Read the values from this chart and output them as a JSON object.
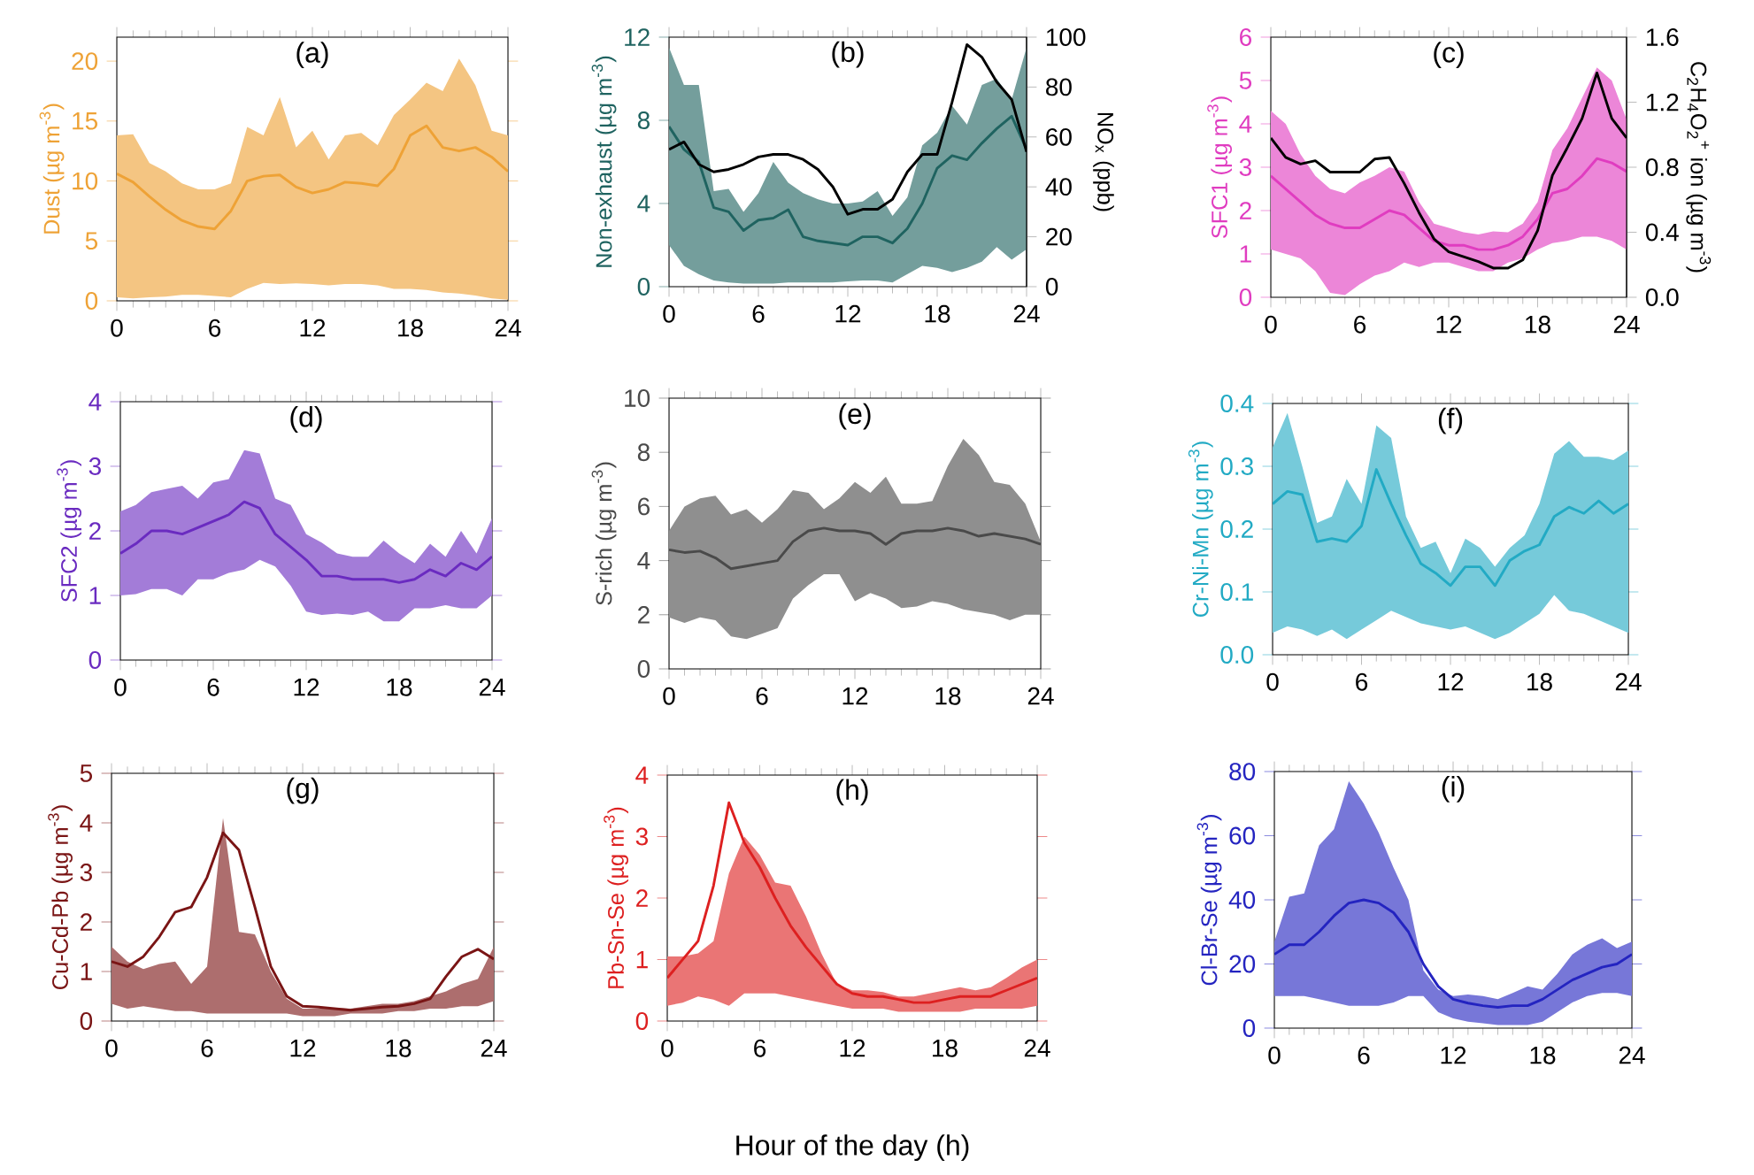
{
  "chart_data": [
    {
      "type": "line",
      "title": "(a)",
      "ylabel": "Dust (µg m$^{-3}$)",
      "x": [
        0,
        1,
        2,
        3,
        4,
        5,
        6,
        7,
        8,
        9,
        10,
        11,
        12,
        13,
        14,
        15,
        16,
        17,
        18,
        19,
        20,
        21,
        22,
        23,
        24
      ],
      "xlim": [
        0,
        24
      ],
      "xticks": [
        0,
        6,
        12,
        18,
        24
      ],
      "ylim": [
        0,
        22
      ],
      "yticks": [
        0,
        5,
        10,
        15,
        20
      ],
      "series": [
        {
          "color": "#eea236",
          "values": [
            10.6,
            9.9,
            8.7,
            7.6,
            6.7,
            6.2,
            6.0,
            7.5,
            10.0,
            10.4,
            10.5,
            9.5,
            9.0,
            9.3,
            9.9,
            9.8,
            9.6,
            11.0,
            13.8,
            14.6,
            12.8,
            12.5,
            12.8,
            12.0,
            10.8
          ],
          "lower": [
            0.3,
            0.2,
            0.3,
            0.35,
            0.5,
            0.5,
            0.4,
            0.3,
            1.0,
            1.5,
            1.4,
            1.45,
            1.4,
            1.3,
            1.4,
            1.4,
            1.3,
            1.0,
            1.0,
            0.9,
            0.7,
            0.6,
            0.45,
            0.2,
            0.1
          ],
          "upper": [
            13.8,
            13.9,
            11.5,
            10.8,
            9.8,
            9.3,
            9.3,
            9.8,
            14.5,
            13.8,
            17.0,
            12.8,
            14.2,
            11.8,
            13.8,
            14.0,
            13.0,
            15.5,
            16.8,
            18.2,
            17.5,
            20.2,
            18.0,
            14.2,
            13.8
          ]
        }
      ]
    },
    {
      "type": "line",
      "title": "(b)",
      "ylabel": "Non-exhaust (µg m$^{-3}$)",
      "y2label": "NO$_{x}$ (ppb)",
      "x": [
        0,
        1,
        2,
        3,
        4,
        5,
        6,
        7,
        8,
        9,
        10,
        11,
        12,
        13,
        14,
        15,
        16,
        17,
        18,
        19,
        20,
        21,
        22,
        23,
        24
      ],
      "xlim": [
        0,
        24
      ],
      "xticks": [
        0,
        6,
        12,
        18,
        24
      ],
      "ylim": [
        0,
        12
      ],
      "yticks": [
        0,
        4,
        8,
        12
      ],
      "y2lim": [
        0,
        100
      ],
      "y2ticks": [
        0,
        20,
        40,
        60,
        80,
        100
      ],
      "series": [
        {
          "color": "#1f6360",
          "values": [
            7.7,
            6.6,
            6.0,
            3.8,
            3.6,
            2.7,
            3.2,
            3.3,
            3.7,
            2.4,
            2.2,
            2.1,
            2.0,
            2.4,
            2.4,
            2.1,
            2.8,
            4.0,
            5.7,
            6.3,
            6.1,
            6.9,
            7.6,
            8.2,
            6.6
          ],
          "lower": [
            2.0,
            1.0,
            0.6,
            0.3,
            0.2,
            0.15,
            0.15,
            0.15,
            0.2,
            0.2,
            0.2,
            0.2,
            0.25,
            0.3,
            0.3,
            0.2,
            0.6,
            1.0,
            0.9,
            0.7,
            0.9,
            1.2,
            1.9,
            1.3,
            1.8
          ],
          "upper": [
            11.5,
            9.7,
            9.7,
            4.6,
            4.7,
            3.6,
            4.5,
            6.0,
            5.0,
            4.5,
            4.2,
            4.0,
            4.0,
            4.1,
            4.6,
            3.4,
            4.3,
            6.8,
            7.4,
            8.7,
            7.8,
            9.7,
            10.0,
            9.0,
            11.5
          ]
        },
        {
          "color": "#000000",
          "axis": "y2",
          "values": [
            55,
            58,
            49,
            46,
            47,
            49,
            52,
            53,
            53,
            51,
            47,
            40,
            29,
            31,
            31,
            35,
            46,
            53,
            53,
            74,
            97,
            92,
            82,
            75,
            54
          ]
        }
      ]
    },
    {
      "type": "line",
      "title": "(c)",
      "ylabel": "SFC1 (µg m$^{-3}$)",
      "y2label": "C$_{2}$H$_{4}$O$_{2}$$^{+}$ ion (µg m$^{-3}$)",
      "x": [
        0,
        1,
        2,
        3,
        4,
        5,
        6,
        7,
        8,
        9,
        10,
        11,
        12,
        13,
        14,
        15,
        16,
        17,
        18,
        19,
        20,
        21,
        22,
        23,
        24
      ],
      "xlim": [
        0,
        24
      ],
      "xticks": [
        0,
        6,
        12,
        18,
        24
      ],
      "ylim": [
        0,
        6
      ],
      "yticks": [
        0,
        1,
        2,
        3,
        4,
        5,
        6
      ],
      "y2lim": [
        0,
        1.6
      ],
      "y2ticks": [
        {
          "value": 0,
          "label": "0.0"
        },
        0.4,
        0.8,
        1.2,
        1.6
      ],
      "series": [
        {
          "color": "#e03cc0",
          "values": [
            2.8,
            2.5,
            2.2,
            1.9,
            1.7,
            1.6,
            1.6,
            1.8,
            2.0,
            1.9,
            1.6,
            1.3,
            1.2,
            1.2,
            1.1,
            1.1,
            1.2,
            1.4,
            1.8,
            2.4,
            2.5,
            2.8,
            3.2,
            3.1,
            2.9
          ],
          "lower": [
            1.1,
            1.0,
            0.9,
            0.6,
            0.1,
            0.05,
            0.3,
            0.5,
            0.6,
            0.8,
            0.7,
            0.8,
            0.8,
            0.7,
            0.6,
            0.6,
            0.8,
            0.9,
            1.1,
            1.25,
            1.3,
            1.4,
            1.4,
            1.3,
            1.1
          ],
          "upper": [
            4.3,
            4.0,
            3.3,
            2.8,
            2.5,
            2.4,
            2.65,
            2.8,
            3.0,
            2.9,
            2.2,
            1.7,
            1.6,
            1.5,
            1.45,
            1.52,
            1.5,
            1.7,
            2.2,
            3.4,
            3.9,
            4.6,
            5.3,
            5.0,
            4.1
          ]
        },
        {
          "color": "#000000",
          "axis": "y2",
          "values": [
            0.98,
            0.86,
            0.82,
            0.84,
            0.77,
            0.77,
            0.77,
            0.85,
            0.86,
            0.7,
            0.52,
            0.36,
            0.28,
            0.25,
            0.22,
            0.18,
            0.18,
            0.23,
            0.41,
            0.75,
            0.92,
            1.1,
            1.38,
            1.1,
            0.98
          ]
        }
      ]
    },
    {
      "type": "line",
      "title": "(d)",
      "ylabel": "SFC2 (µg m$^{-3}$)",
      "x": [
        0,
        1,
        2,
        3,
        4,
        5,
        6,
        7,
        8,
        9,
        10,
        11,
        12,
        13,
        14,
        15,
        16,
        17,
        18,
        19,
        20,
        21,
        22,
        23,
        24
      ],
      "xlim": [
        0,
        24
      ],
      "xticks": [
        0,
        6,
        12,
        18,
        24
      ],
      "ylim": [
        0,
        4
      ],
      "yticks": [
        0,
        1,
        2,
        3,
        4
      ],
      "series": [
        {
          "color": "#6a2bc0",
          "values": [
            1.65,
            1.8,
            2.0,
            2.0,
            1.95,
            2.05,
            2.15,
            2.25,
            2.45,
            2.35,
            1.95,
            1.75,
            1.55,
            1.3,
            1.3,
            1.25,
            1.25,
            1.25,
            1.2,
            1.25,
            1.4,
            1.3,
            1.5,
            1.4,
            1.6
          ],
          "lower": [
            1.0,
            1.02,
            1.1,
            1.1,
            1.0,
            1.25,
            1.25,
            1.35,
            1.4,
            1.55,
            1.45,
            1.15,
            0.75,
            0.7,
            0.72,
            0.7,
            0.75,
            0.6,
            0.6,
            0.8,
            0.8,
            0.85,
            0.8,
            0.8,
            1.0
          ],
          "upper": [
            2.3,
            2.4,
            2.6,
            2.65,
            2.7,
            2.5,
            2.75,
            2.8,
            3.25,
            3.2,
            2.5,
            2.4,
            1.95,
            1.82,
            1.65,
            1.6,
            1.6,
            1.85,
            1.65,
            1.5,
            1.8,
            1.6,
            2.0,
            1.65,
            2.2
          ]
        }
      ]
    },
    {
      "type": "line",
      "title": "(e)",
      "ylabel": "S-rich (µg m$^{-3}$)",
      "x": [
        0,
        1,
        2,
        3,
        4,
        5,
        6,
        7,
        8,
        9,
        10,
        11,
        12,
        13,
        14,
        15,
        16,
        17,
        18,
        19,
        20,
        21,
        22,
        23,
        24
      ],
      "xlim": [
        0,
        24
      ],
      "xticks": [
        0,
        6,
        12,
        18,
        24
      ],
      "ylim": [
        0,
        10
      ],
      "yticks": [
        0,
        2,
        4,
        6,
        8,
        10
      ],
      "series": [
        {
          "color": "#4a4a4a",
          "values": [
            4.4,
            4.3,
            4.35,
            4.1,
            3.7,
            3.8,
            3.9,
            4.0,
            4.7,
            5.1,
            5.2,
            5.1,
            5.1,
            5.0,
            4.6,
            5.0,
            5.1,
            5.1,
            5.2,
            5.1,
            4.9,
            5.0,
            4.9,
            4.8,
            4.6
          ],
          "lower": [
            1.9,
            1.7,
            1.9,
            1.8,
            1.2,
            1.1,
            1.3,
            1.5,
            2.6,
            3.1,
            3.5,
            3.5,
            2.5,
            2.8,
            2.6,
            2.25,
            2.3,
            2.5,
            2.4,
            2.2,
            2.1,
            2.0,
            1.8,
            2.0,
            2.0
          ],
          "upper": [
            5.1,
            6.0,
            6.3,
            6.4,
            5.7,
            5.9,
            5.4,
            5.9,
            6.6,
            6.5,
            5.9,
            6.3,
            6.9,
            6.5,
            7.1,
            6.1,
            6.1,
            6.2,
            7.5,
            8.5,
            7.9,
            6.9,
            6.8,
            6.1,
            4.7
          ]
        }
      ]
    },
    {
      "type": "line",
      "title": "(f)",
      "ylabel": "Cr-Ni-Mn (µg m$^{-3}$)",
      "x": [
        0,
        1,
        2,
        3,
        4,
        5,
        6,
        7,
        8,
        9,
        10,
        11,
        12,
        13,
        14,
        15,
        16,
        17,
        18,
        19,
        20,
        21,
        22,
        23,
        24
      ],
      "xlim": [
        0,
        24
      ],
      "xticks": [
        0,
        6,
        12,
        18,
        24
      ],
      "ylim": [
        0,
        0.4
      ],
      "yticks": [
        {
          "value": 0,
          "label": "0.0"
        },
        0.1,
        0.2,
        0.3,
        0.4
      ],
      "series": [
        {
          "color": "#22aac4",
          "values": [
            0.24,
            0.26,
            0.255,
            0.18,
            0.185,
            0.18,
            0.205,
            0.295,
            0.24,
            0.19,
            0.145,
            0.13,
            0.11,
            0.14,
            0.14,
            0.11,
            0.15,
            0.165,
            0.175,
            0.22,
            0.235,
            0.225,
            0.245,
            0.225,
            0.24
          ],
          "lower": [
            0.035,
            0.045,
            0.04,
            0.03,
            0.04,
            0.025,
            0.04,
            0.055,
            0.07,
            0.06,
            0.05,
            0.045,
            0.04,
            0.045,
            0.035,
            0.025,
            0.035,
            0.05,
            0.065,
            0.095,
            0.07,
            0.065,
            0.055,
            0.045,
            0.035
          ],
          "upper": [
            0.33,
            0.385,
            0.3,
            0.21,
            0.22,
            0.28,
            0.24,
            0.365,
            0.345,
            0.22,
            0.17,
            0.18,
            0.13,
            0.185,
            0.17,
            0.14,
            0.17,
            0.19,
            0.24,
            0.32,
            0.34,
            0.315,
            0.315,
            0.31,
            0.325
          ]
        }
      ]
    },
    {
      "type": "line",
      "title": "(g)",
      "ylabel": "Cu-Cd-Pb (µg m$^{-3}$)",
      "x": [
        0,
        1,
        2,
        3,
        4,
        5,
        6,
        7,
        8,
        9,
        10,
        11,
        12,
        13,
        14,
        15,
        16,
        17,
        18,
        19,
        20,
        21,
        22,
        23,
        24
      ],
      "xlim": [
        0,
        24
      ],
      "xticks": [
        0,
        6,
        12,
        18,
        24
      ],
      "ylim": [
        0,
        5
      ],
      "yticks": [
        0,
        1,
        2,
        3,
        4,
        5
      ],
      "series": [
        {
          "color": "#7a1515",
          "values": [
            1.2,
            1.1,
            1.3,
            1.7,
            2.2,
            2.3,
            2.9,
            3.8,
            3.45,
            2.3,
            1.1,
            0.5,
            0.3,
            0.28,
            0.25,
            0.22,
            0.25,
            0.28,
            0.3,
            0.35,
            0.45,
            0.9,
            1.3,
            1.45,
            1.25
          ],
          "lower": [
            0.35,
            0.25,
            0.3,
            0.25,
            0.2,
            0.2,
            0.15,
            0.15,
            0.15,
            0.15,
            0.15,
            0.15,
            0.1,
            0.1,
            0.1,
            0.15,
            0.15,
            0.15,
            0.2,
            0.2,
            0.25,
            0.25,
            0.3,
            0.3,
            0.4
          ],
          "upper": [
            1.5,
            1.2,
            1.05,
            1.15,
            1.2,
            0.75,
            1.1,
            4.1,
            1.8,
            1.75,
            1.0,
            0.45,
            0.25,
            0.25,
            0.27,
            0.25,
            0.3,
            0.35,
            0.35,
            0.4,
            0.5,
            0.6,
            0.75,
            0.85,
            1.5
          ]
        }
      ]
    },
    {
      "type": "line",
      "title": "(h)",
      "ylabel": "Pb-Sn-Se (µg m$^{-3}$)",
      "xlabel": "Hour of the day (h)",
      "x": [
        0,
        1,
        2,
        3,
        4,
        5,
        6,
        7,
        8,
        9,
        10,
        11,
        12,
        13,
        14,
        15,
        16,
        17,
        18,
        19,
        20,
        21,
        22,
        23,
        24
      ],
      "xlim": [
        0,
        24
      ],
      "xticks": [
        0,
        6,
        12,
        18,
        24
      ],
      "ylim": [
        0,
        4
      ],
      "yticks": [
        0,
        1,
        2,
        3,
        4
      ],
      "series": [
        {
          "color": "#dd2020",
          "values": [
            0.7,
            1.0,
            1.3,
            2.2,
            3.55,
            2.9,
            2.5,
            2.0,
            1.55,
            1.2,
            0.9,
            0.6,
            0.45,
            0.4,
            0.4,
            0.35,
            0.3,
            0.3,
            0.35,
            0.4,
            0.4,
            0.4,
            0.5,
            0.6,
            0.7
          ],
          "lower": [
            0.25,
            0.3,
            0.4,
            0.35,
            0.25,
            0.45,
            0.45,
            0.45,
            0.4,
            0.35,
            0.3,
            0.25,
            0.2,
            0.2,
            0.2,
            0.15,
            0.15,
            0.15,
            0.15,
            0.15,
            0.2,
            0.2,
            0.2,
            0.2,
            0.25
          ],
          "upper": [
            1.05,
            1.05,
            1.1,
            1.3,
            2.4,
            3.0,
            2.7,
            2.25,
            2.2,
            1.7,
            1.1,
            0.6,
            0.5,
            0.5,
            0.47,
            0.4,
            0.4,
            0.45,
            0.5,
            0.55,
            0.5,
            0.55,
            0.7,
            0.87,
            1.0
          ]
        }
      ]
    },
    {
      "type": "line",
      "title": "(i)",
      "ylabel": "Cl-Br-Se (µg m$^{-3}$)",
      "x": [
        0,
        1,
        2,
        3,
        4,
        5,
        6,
        7,
        8,
        9,
        10,
        11,
        12,
        13,
        14,
        15,
        16,
        17,
        18,
        19,
        20,
        21,
        22,
        23,
        24
      ],
      "xlim": [
        0,
        24
      ],
      "xticks": [
        0,
        6,
        12,
        18,
        24
      ],
      "ylim": [
        0,
        80
      ],
      "yticks": [
        0,
        20,
        40,
        60,
        80
      ],
      "series": [
        {
          "color": "#2424c0",
          "values": [
            23,
            26,
            26,
            30,
            35,
            39,
            40,
            39,
            36,
            30,
            20,
            13,
            9,
            7.8,
            7,
            6.5,
            7,
            7,
            9,
            12,
            15,
            17,
            19,
            20,
            23
          ],
          "lower": [
            10,
            10,
            10,
            9,
            8,
            7,
            7,
            7,
            8,
            10,
            10,
            5,
            3,
            2,
            1.5,
            1,
            1,
            1,
            2,
            5,
            8,
            10,
            11,
            11,
            10
          ],
          "upper": [
            27,
            41,
            42,
            57,
            62,
            77,
            70,
            61,
            50,
            40,
            18,
            12,
            10,
            10.5,
            10,
            9,
            11,
            13,
            12,
            17,
            23,
            26,
            28,
            25,
            27
          ]
        }
      ]
    }
  ]
}
